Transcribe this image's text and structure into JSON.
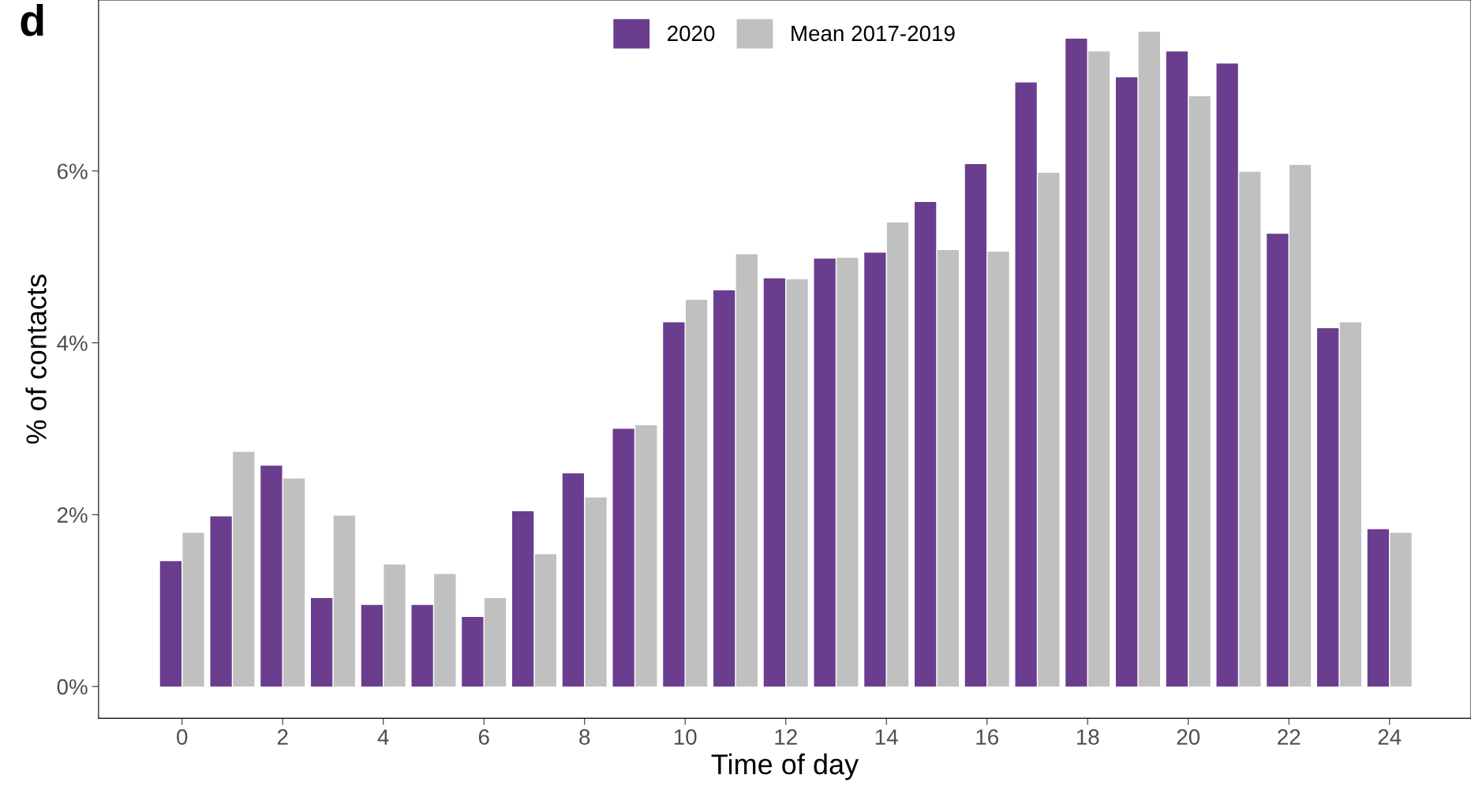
{
  "chart_data": {
    "type": "bar",
    "xlabel": "Time of day",
    "ylabel": "% of contacts",
    "annotations": [
      "d"
    ],
    "x": [
      0,
      1,
      2,
      3,
      4,
      5,
      6,
      7,
      8,
      9,
      10,
      11,
      12,
      13,
      14,
      15,
      16,
      17,
      18,
      19,
      20,
      21,
      22,
      23,
      24
    ],
    "series": [
      {
        "name": "2020",
        "color": "#6a3d8f",
        "values": [
          1.46,
          1.98,
          2.57,
          1.03,
          0.95,
          0.95,
          0.81,
          2.04,
          2.48,
          3.0,
          4.24,
          4.61,
          4.75,
          4.98,
          5.05,
          5.64,
          6.08,
          7.03,
          7.54,
          7.09,
          7.39,
          7.25,
          5.27,
          4.17,
          1.83
        ]
      },
      {
        "name": "Mean 2017-2019",
        "color": "#c0c0c0",
        "values": [
          1.79,
          2.73,
          2.42,
          1.99,
          1.42,
          1.31,
          1.03,
          1.54,
          2.2,
          3.04,
          4.5,
          5.03,
          4.74,
          4.99,
          5.4,
          5.08,
          5.06,
          5.98,
          7.39,
          7.62,
          6.87,
          5.99,
          6.07,
          4.24,
          1.79
        ]
      }
    ],
    "xlim": [
      -1.66,
      25.62
    ],
    "xticks": [
      0,
      2,
      4,
      6,
      8,
      10,
      12,
      14,
      16,
      18,
      20,
      22,
      24
    ],
    "ylim": [
      -0.37,
      7.99
    ],
    "yticks": [
      {
        "value": 0,
        "label": "0%"
      },
      {
        "value": 2,
        "label": "2%"
      },
      {
        "value": 4,
        "label": "4%"
      },
      {
        "value": 6,
        "label": "6%"
      }
    ],
    "grid": false,
    "legend": "top"
  }
}
